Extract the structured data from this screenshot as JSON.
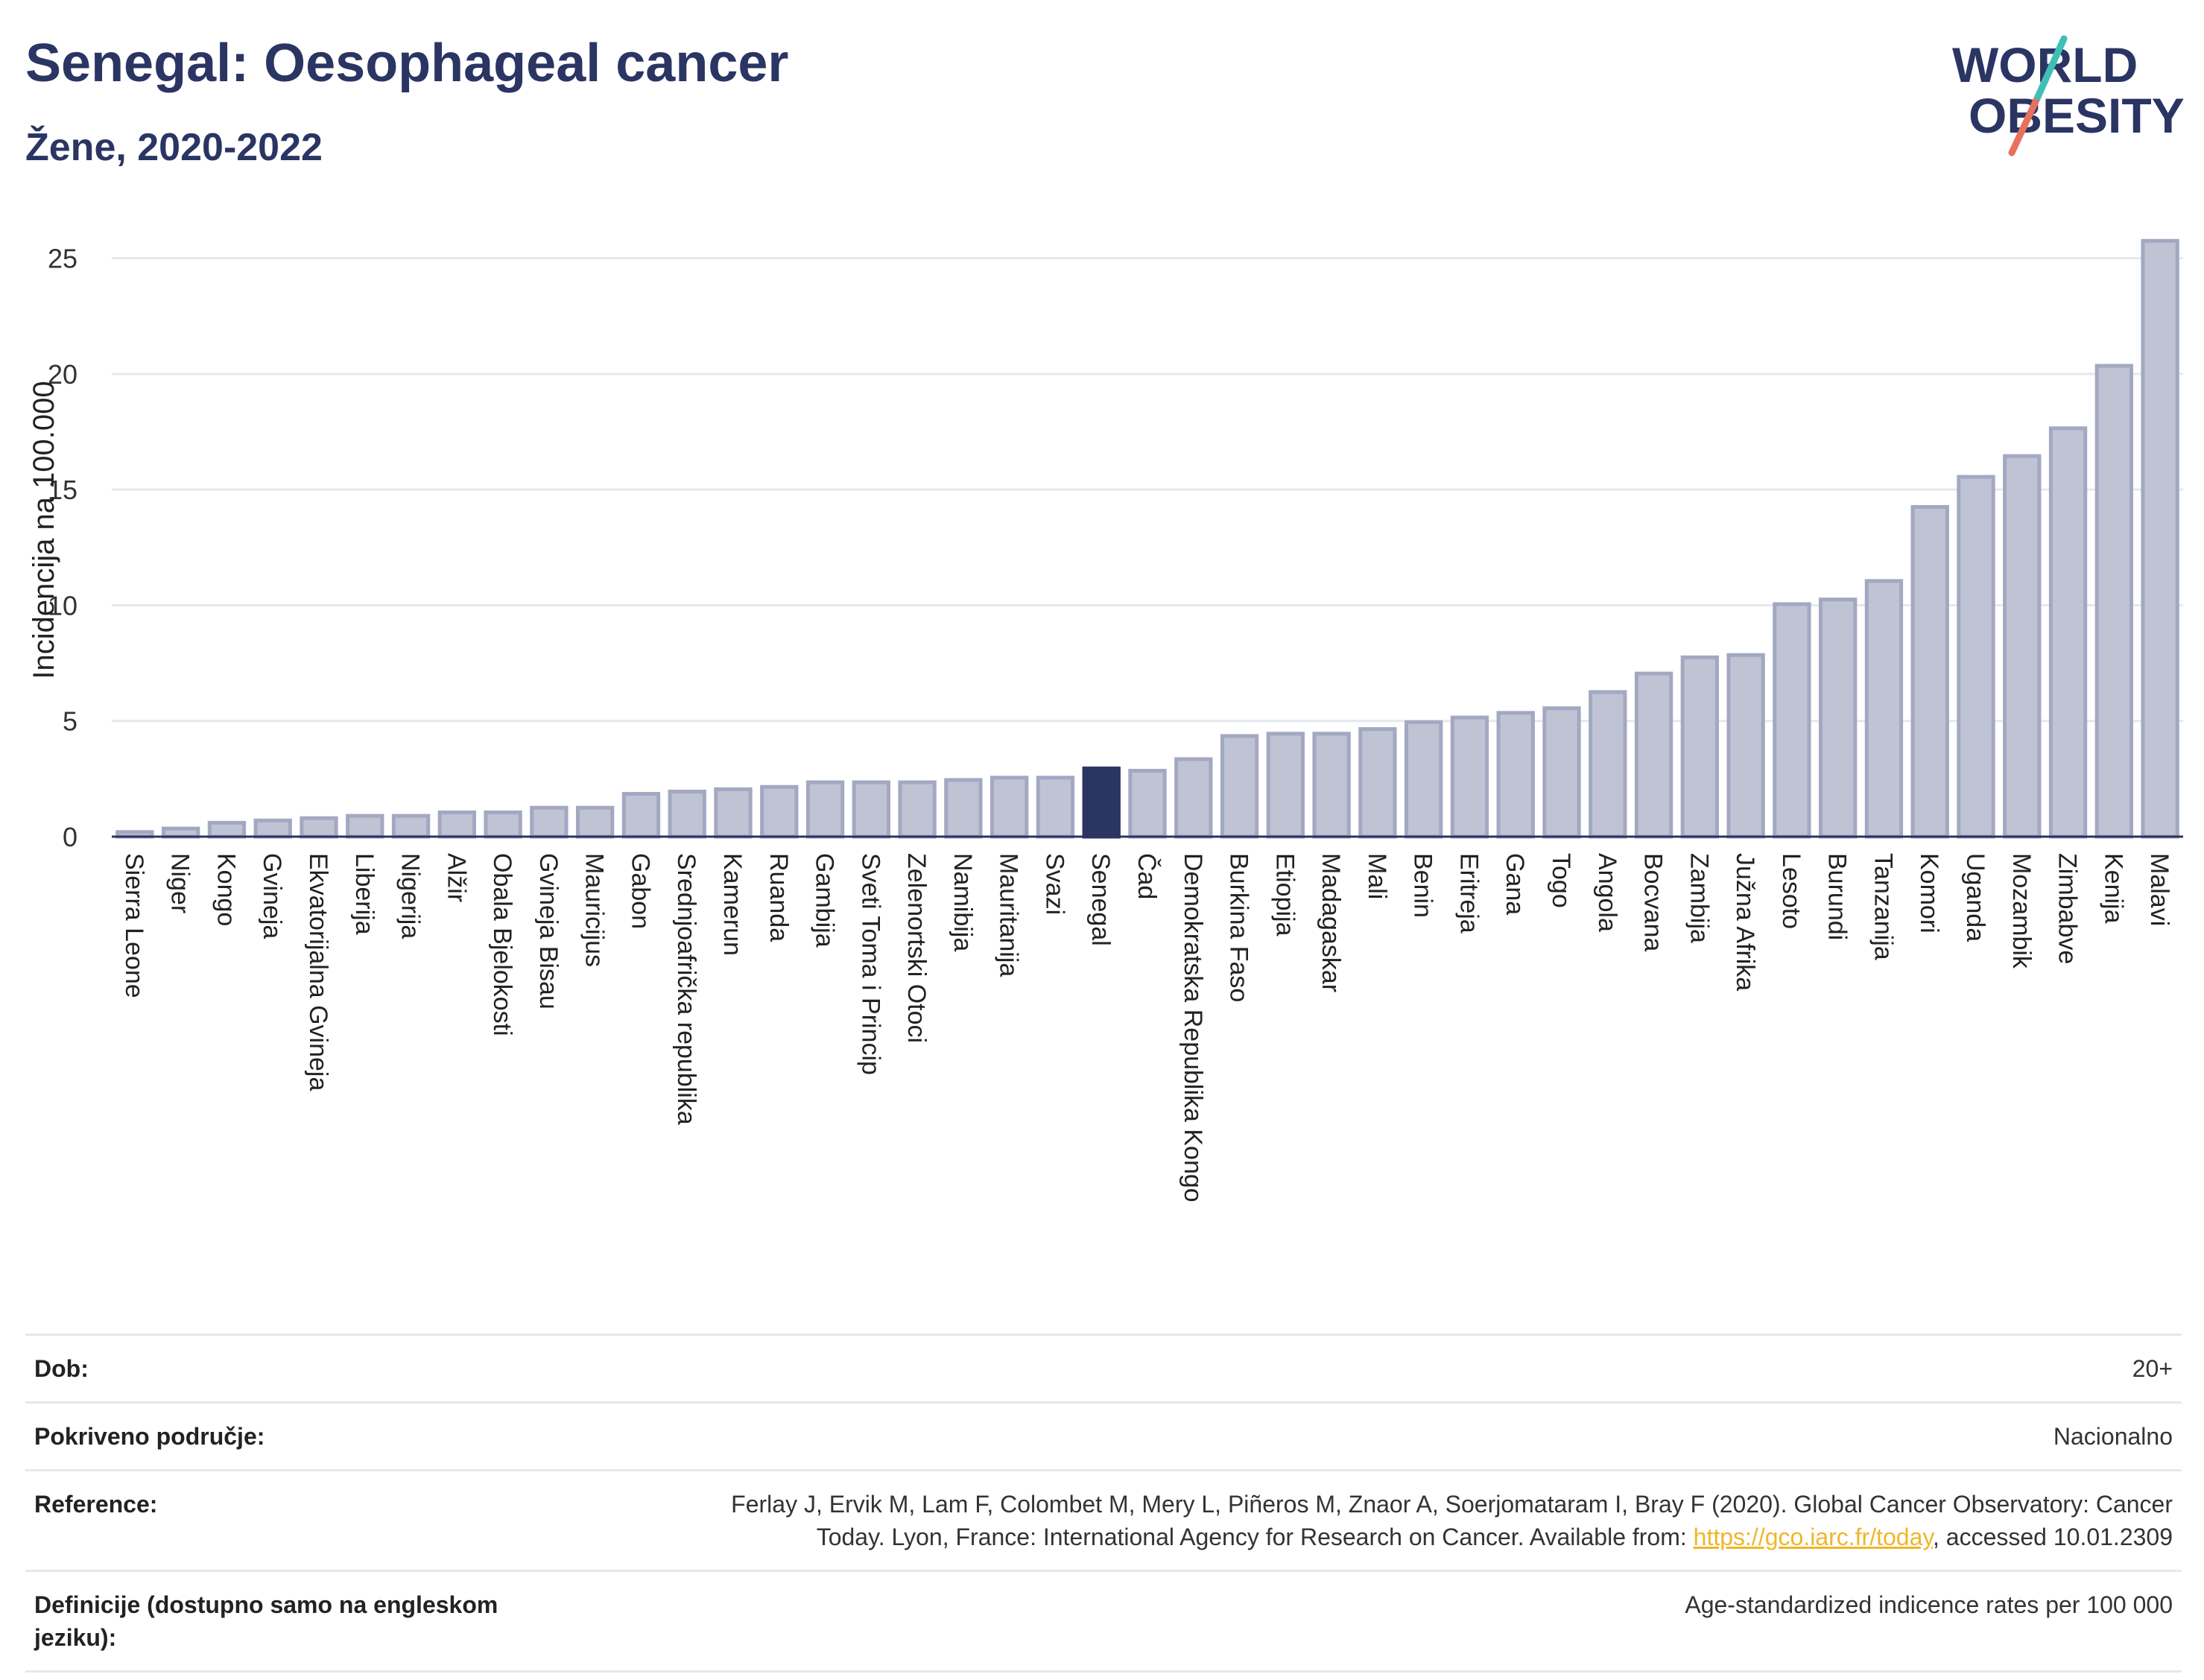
{
  "header": {
    "title": "Senegal: Oesophageal cancer",
    "subtitle": "Žene, 2020-2022"
  },
  "logo": {
    "line1": "WORLD",
    "line2": "OBESITY"
  },
  "chart_data": {
    "type": "bar",
    "ylabel": "Incidencija na 100.000",
    "ylim": [
      0,
      26.5
    ],
    "yticks": [
      0,
      5,
      10,
      15,
      20,
      25
    ],
    "grid": true,
    "highlight": "Senegal",
    "colors": {
      "bar": "#bfc3d3",
      "bar_edge": "#a3a8c2",
      "highlight": "#2b3563",
      "grid": "#e6e8ef"
    },
    "categories": [
      "Sierra Leone",
      "Niger",
      "Kongo",
      "Gvineja",
      "Ekvatorijalna Gvineja",
      "Liberija",
      "Nigerija",
      "Alžir",
      "Obala Bjelokosti",
      "Gvineja Bisau",
      "Mauricijus",
      "Gabon",
      "Srednjoafrička republika",
      "Kamerun",
      "Ruanda",
      "Gambija",
      "Sveti Toma i Princip",
      "Zelenortski Otoci",
      "Namibija",
      "Mauritanija",
      "Svazi",
      "Senegal",
      "Čad",
      "Demokratska Republika Kongo",
      "Burkina Faso",
      "Etiopija",
      "Madagaskar",
      "Mali",
      "Benin",
      "Eritreja",
      "Gana",
      "Togo",
      "Angola",
      "Bocvana",
      "Zambija",
      "Južna Afrika",
      "Lesoto",
      "Burundi",
      "Tanzanija",
      "Komori",
      "Uganda",
      "Mozambik",
      "Zimbabve",
      "Kenija",
      "Malavi"
    ],
    "values": [
      0.2,
      0.35,
      0.6,
      0.7,
      0.8,
      0.9,
      0.9,
      1.05,
      1.05,
      1.25,
      1.25,
      1.85,
      1.95,
      2.05,
      2.15,
      2.35,
      2.35,
      2.35,
      2.45,
      2.55,
      2.55,
      2.95,
      2.85,
      3.35,
      4.35,
      4.45,
      4.45,
      4.65,
      4.95,
      5.15,
      5.35,
      5.55,
      6.25,
      7.05,
      7.75,
      7.85,
      10.05,
      10.25,
      11.05,
      14.25,
      15.55,
      16.45,
      17.65,
      20.35,
      25.75
    ]
  },
  "info": {
    "age_label": "Dob:",
    "age_value": "20+",
    "coverage_label": "Pokriveno područje:",
    "coverage_value": "Nacionalno",
    "reference_label": "Reference:",
    "reference_text1": "Ferlay J, Ervik M, Lam F, Colombet M, Mery L, Piñeros M, Znaor A, Soerjomataram I, Bray F (2020). Global Cancer Observatory: Cancer",
    "reference_text2": "Today. Lyon, France: International Agency for Research on Cancer. Available from: ",
    "reference_link": "https://gco.iarc.fr/today",
    "reference_text3": ", accessed 10.01.2309",
    "definitions_label": "Definicije (dostupno samo na engleskom jeziku):",
    "definitions_value": "Age-standardized indicence rates per 100 000"
  }
}
